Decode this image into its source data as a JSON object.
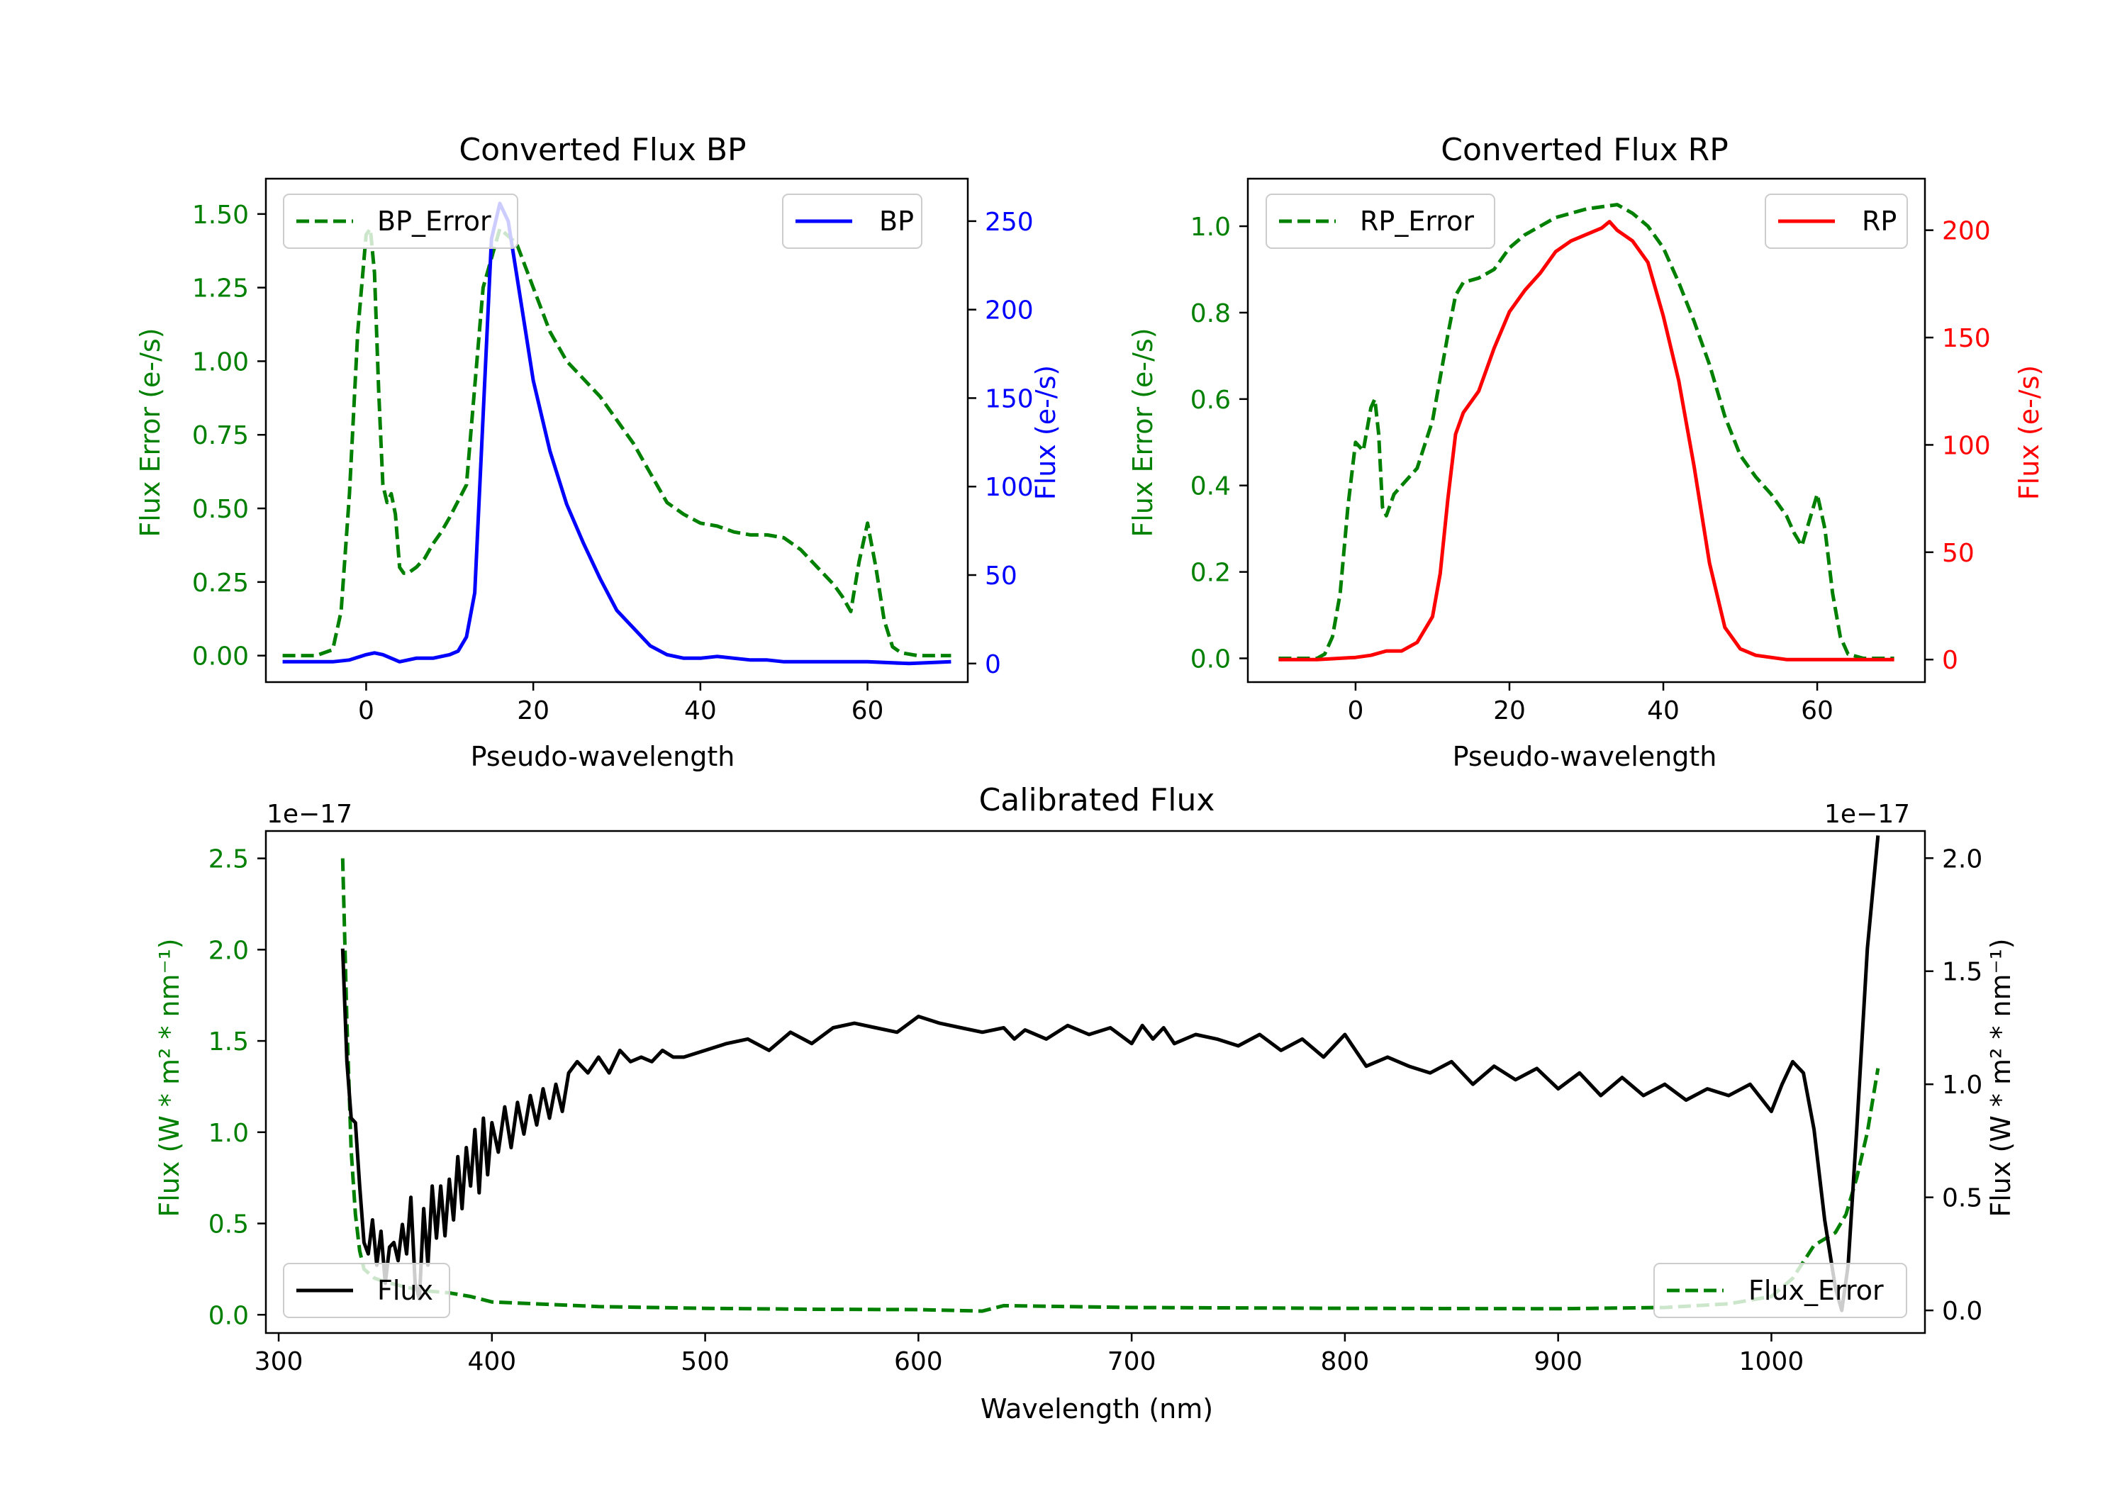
{
  "chart_data": [
    {
      "id": "bp",
      "type": "line",
      "title": "Converted Flux BP",
      "xlabel": "Pseudo-wavelength",
      "ylabel_left": "Flux Error (e-/s)",
      "ylabel_right": "Flux (e-/s)",
      "xlim": [
        -12,
        72
      ],
      "ylim_left": [
        -0.09,
        1.62
      ],
      "ylim_right": [
        -10.5,
        274
      ],
      "xticks": [
        0,
        20,
        40,
        60
      ],
      "yticks_left": [
        0.0,
        0.25,
        0.5,
        0.75,
        1.0,
        1.25,
        1.5
      ],
      "yticks_left_labels": [
        "0.00",
        "0.25",
        "0.50",
        "0.75",
        "1.00",
        "1.25",
        "1.50"
      ],
      "yticks_right": [
        0,
        50,
        100,
        150,
        200,
        250
      ],
      "legend_left": "BP_Error",
      "legend_right": "BP",
      "colors": {
        "error": "#008000",
        "flux": "#0000ff",
        "left_axis": "#008000",
        "right_axis": "#0000ff"
      },
      "series": [
        {
          "name": "BP_Error",
          "axis": "left",
          "style": "dashed",
          "color": "#008000",
          "x": [
            -10,
            -6,
            -4,
            -3,
            -2,
            -1,
            0,
            0.5,
            1,
            1.5,
            2,
            2.5,
            3,
            3.5,
            4,
            4.5,
            5,
            6,
            7,
            8,
            9,
            10,
            12,
            14,
            16,
            18,
            20,
            22,
            24,
            26,
            28,
            30,
            32,
            34,
            36,
            38,
            40,
            42,
            44,
            46,
            48,
            50,
            52,
            54,
            56,
            57,
            58,
            59,
            60,
            61,
            62,
            63,
            64,
            66,
            70
          ],
          "y": [
            0.0,
            0.0,
            0.02,
            0.15,
            0.55,
            1.1,
            1.43,
            1.45,
            1.3,
            0.9,
            0.58,
            0.52,
            0.55,
            0.48,
            0.3,
            0.28,
            0.28,
            0.3,
            0.33,
            0.38,
            0.42,
            0.47,
            0.58,
            1.25,
            1.45,
            1.4,
            1.25,
            1.1,
            1.0,
            0.94,
            0.88,
            0.8,
            0.72,
            0.62,
            0.52,
            0.48,
            0.45,
            0.44,
            0.42,
            0.41,
            0.41,
            0.4,
            0.36,
            0.3,
            0.24,
            0.2,
            0.15,
            0.32,
            0.45,
            0.3,
            0.12,
            0.03,
            0.01,
            0.0,
            0.0
          ]
        },
        {
          "name": "BP",
          "axis": "right",
          "style": "solid",
          "color": "#0000ff",
          "x": [
            -10,
            -6,
            -4,
            -2,
            0,
            1,
            2,
            3,
            4,
            5,
            6,
            7,
            8,
            9,
            10,
            11,
            12,
            13,
            14,
            15,
            16,
            17,
            18,
            19,
            20,
            22,
            24,
            26,
            28,
            30,
            32,
            34,
            36,
            38,
            40,
            42,
            44,
            46,
            48,
            50,
            52,
            55,
            60,
            65,
            70
          ],
          "y": [
            1,
            1,
            1,
            2,
            5,
            6,
            5,
            3,
            1,
            2,
            3,
            3,
            3,
            4,
            5,
            7,
            15,
            40,
            140,
            240,
            260,
            250,
            220,
            190,
            160,
            120,
            90,
            68,
            48,
            30,
            20,
            10,
            5,
            3,
            3,
            4,
            3,
            2,
            2,
            1,
            1,
            1,
            1,
            0,
            1
          ]
        }
      ]
    },
    {
      "id": "rp",
      "type": "line",
      "title": "Converted Flux RP",
      "xlabel": "Pseudo-wavelength",
      "ylabel_left": "Flux Error (e-/s)",
      "ylabel_right": "Flux (e-/s)",
      "xlim": [
        -14,
        74
      ],
      "ylim_left": [
        -0.055,
        1.11
      ],
      "ylim_right": [
        -10.5,
        224
      ],
      "xticks": [
        0,
        20,
        40,
        60
      ],
      "yticks_left": [
        0.0,
        0.2,
        0.4,
        0.6,
        0.8,
        1.0
      ],
      "yticks_left_labels": [
        "0.0",
        "0.2",
        "0.4",
        "0.6",
        "0.8",
        "1.0"
      ],
      "yticks_right": [
        0,
        50,
        100,
        150,
        200
      ],
      "legend_left": "RP_Error",
      "legend_right": "RP",
      "colors": {
        "error": "#008000",
        "flux": "#ff0000",
        "left_axis": "#008000",
        "right_axis": "#ff0000"
      },
      "series": [
        {
          "name": "RP_Error",
          "axis": "left",
          "style": "dashed",
          "color": "#008000",
          "x": [
            -10,
            -5,
            -4,
            -3,
            -2,
            -1,
            0,
            1,
            2,
            2.5,
            3,
            3.5,
            4,
            5,
            6,
            8,
            10,
            12,
            13,
            14,
            16,
            18,
            20,
            22,
            24,
            26,
            28,
            30,
            32,
            34,
            36,
            38,
            40,
            42,
            44,
            46,
            48,
            50,
            52,
            54,
            56,
            57,
            58,
            59,
            60,
            61,
            62,
            63,
            64,
            66,
            70
          ],
          "y": [
            0.0,
            0.0,
            0.01,
            0.05,
            0.15,
            0.35,
            0.5,
            0.48,
            0.58,
            0.6,
            0.52,
            0.35,
            0.33,
            0.38,
            0.4,
            0.44,
            0.55,
            0.75,
            0.84,
            0.87,
            0.88,
            0.9,
            0.95,
            0.98,
            1.0,
            1.02,
            1.03,
            1.04,
            1.045,
            1.05,
            1.03,
            1.0,
            0.95,
            0.87,
            0.78,
            0.68,
            0.56,
            0.47,
            0.42,
            0.38,
            0.33,
            0.29,
            0.26,
            0.32,
            0.38,
            0.3,
            0.15,
            0.05,
            0.01,
            0.0,
            0.0
          ]
        },
        {
          "name": "RP",
          "axis": "right",
          "style": "solid",
          "color": "#ff0000",
          "x": [
            -10,
            -5,
            0,
            2,
            4,
            5,
            6,
            8,
            10,
            11,
            12,
            13,
            14,
            16,
            18,
            20,
            22,
            24,
            26,
            28,
            30,
            32,
            33,
            34,
            36,
            38,
            40,
            42,
            44,
            46,
            48,
            50,
            52,
            54,
            56,
            60,
            65,
            70
          ],
          "y": [
            0,
            0,
            1,
            2,
            4,
            4,
            4,
            8,
            20,
            40,
            75,
            105,
            115,
            125,
            145,
            162,
            172,
            180,
            190,
            195,
            198,
            201,
            204,
            200,
            195,
            185,
            160,
            130,
            90,
            45,
            15,
            5,
            2,
            1,
            0,
            0,
            0,
            0
          ]
        }
      ]
    },
    {
      "id": "cal",
      "type": "line",
      "title": "Calibrated Flux",
      "xlabel": "Wavelength (nm)",
      "ylabel_left": "Flux (W * m² * nm⁻¹)",
      "ylabel_right": "Flux (W * m² * nm⁻¹)",
      "offset_left": "1e−17",
      "offset_right": "1e−17",
      "xlim": [
        294,
        1072
      ],
      "ylim_left": [
        -0.1,
        2.65
      ],
      "ylim_right": [
        -0.1,
        2.12
      ],
      "xticks": [
        300,
        400,
        500,
        600,
        700,
        800,
        900,
        1000
      ],
      "yticks_left": [
        0.0,
        0.5,
        1.0,
        1.5,
        2.0,
        2.5
      ],
      "yticks_left_labels": [
        "0.0",
        "0.5",
        "1.0",
        "1.5",
        "2.0",
        "2.5"
      ],
      "yticks_right": [
        0.0,
        0.5,
        1.0,
        1.5,
        2.0
      ],
      "yticks_right_labels": [
        "0.0",
        "0.5",
        "1.0",
        "1.5",
        "2.0"
      ],
      "legend_left": "Flux",
      "legend_right": "Flux_Error",
      "colors": {
        "error": "#008000",
        "flux": "#000000",
        "left_axis": "#008000",
        "right_axis": "#000000"
      },
      "series": [
        {
          "name": "Flux_Error",
          "axis": "left",
          "style": "dashed",
          "color": "#008000",
          "x": [
            330,
            332,
            334,
            336,
            338,
            340,
            345,
            350,
            360,
            370,
            380,
            390,
            400,
            420,
            450,
            500,
            550,
            600,
            630,
            640,
            700,
            800,
            900,
            950,
            980,
            1000,
            1010,
            1020,
            1030,
            1035,
            1040,
            1045,
            1050
          ],
          "y": [
            2.5,
            1.6,
            0.9,
            0.55,
            0.35,
            0.25,
            0.2,
            0.18,
            0.15,
            0.13,
            0.12,
            0.1,
            0.07,
            0.06,
            0.045,
            0.035,
            0.03,
            0.028,
            0.02,
            0.05,
            0.04,
            0.035,
            0.033,
            0.04,
            0.06,
            0.1,
            0.2,
            0.38,
            0.45,
            0.55,
            0.75,
            1.0,
            1.35
          ]
        },
        {
          "name": "Flux",
          "axis": "right",
          "style": "solid",
          "color": "#000000",
          "x": [
            330,
            332,
            334,
            336,
            338,
            340,
            342,
            344,
            346,
            348,
            350,
            352,
            354,
            356,
            358,
            360,
            362,
            364,
            366,
            368,
            370,
            372,
            374,
            376,
            378,
            380,
            382,
            384,
            386,
            388,
            390,
            392,
            394,
            396,
            398,
            400,
            403,
            406,
            409,
            412,
            415,
            418,
            421,
            424,
            427,
            430,
            433,
            436,
            440,
            445,
            450,
            455,
            460,
            465,
            470,
            475,
            480,
            485,
            490,
            500,
            510,
            520,
            530,
            540,
            550,
            560,
            570,
            580,
            590,
            600,
            610,
            620,
            630,
            640,
            645,
            650,
            660,
            670,
            680,
            690,
            700,
            705,
            710,
            715,
            720,
            730,
            740,
            750,
            760,
            770,
            780,
            790,
            800,
            805,
            810,
            820,
            830,
            840,
            850,
            860,
            870,
            880,
            890,
            900,
            910,
            920,
            930,
            940,
            950,
            960,
            970,
            980,
            990,
            1000,
            1005,
            1010,
            1015,
            1020,
            1025,
            1030,
            1033,
            1036,
            1040,
            1045,
            1050
          ],
          "y": [
            1.6,
            1.1,
            0.85,
            0.83,
            0.55,
            0.3,
            0.25,
            0.4,
            0.2,
            0.35,
            0.12,
            0.28,
            0.3,
            0.22,
            0.38,
            0.25,
            0.5,
            0.12,
            0.05,
            0.45,
            0.2,
            0.55,
            0.32,
            0.55,
            0.33,
            0.58,
            0.4,
            0.68,
            0.45,
            0.72,
            0.55,
            0.8,
            0.52,
            0.85,
            0.6,
            0.83,
            0.7,
            0.9,
            0.72,
            0.92,
            0.78,
            0.95,
            0.82,
            0.98,
            0.85,
            1.0,
            0.88,
            1.05,
            1.1,
            1.05,
            1.12,
            1.05,
            1.15,
            1.1,
            1.12,
            1.1,
            1.15,
            1.12,
            1.12,
            1.15,
            1.18,
            1.2,
            1.15,
            1.23,
            1.18,
            1.25,
            1.27,
            1.25,
            1.23,
            1.3,
            1.27,
            1.25,
            1.23,
            1.25,
            1.2,
            1.24,
            1.2,
            1.26,
            1.22,
            1.25,
            1.18,
            1.26,
            1.2,
            1.25,
            1.18,
            1.22,
            1.2,
            1.17,
            1.22,
            1.15,
            1.2,
            1.12,
            1.22,
            1.15,
            1.08,
            1.12,
            1.08,
            1.05,
            1.1,
            1.0,
            1.08,
            1.02,
            1.07,
            0.98,
            1.05,
            0.95,
            1.03,
            0.95,
            1.0,
            0.93,
            0.98,
            0.95,
            1.0,
            0.88,
            1.0,
            1.1,
            1.05,
            0.8,
            0.4,
            0.1,
            0.0,
            0.2,
            0.8,
            1.6,
            2.1
          ]
        }
      ]
    }
  ]
}
